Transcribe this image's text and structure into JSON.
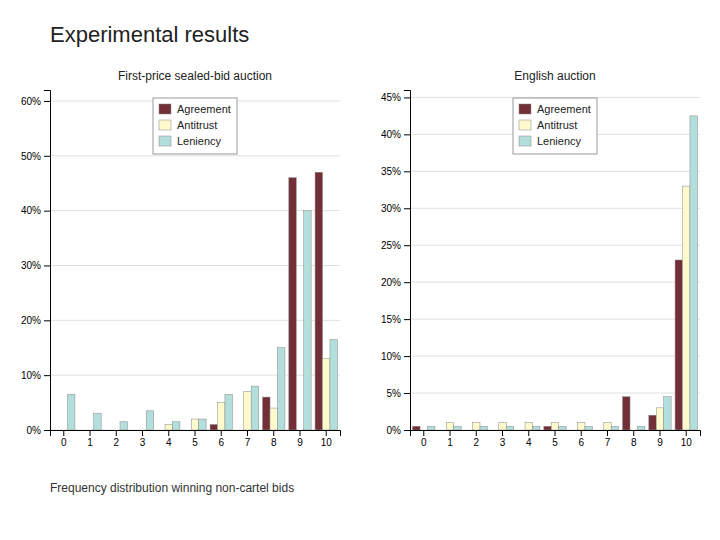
{
  "title": "Experimental results",
  "subtitle": "Frequency distribution winning non-cartel bids",
  "chart_data": [
    {
      "type": "bar",
      "title": "First-price sealed-bid auction",
      "categories": [
        0,
        1,
        2,
        3,
        4,
        5,
        6,
        7,
        8,
        9,
        10
      ],
      "series": [
        {
          "name": "Agreement",
          "color": "#722F37",
          "values": [
            0,
            0,
            0,
            0,
            0,
            0,
            0.01,
            0,
            0.06,
            0.46,
            0.47
          ]
        },
        {
          "name": "Antitrust",
          "color": "#FFFACD",
          "values": [
            0,
            0,
            0,
            0,
            0.01,
            0.02,
            0.05,
            0.07,
            0.04,
            0,
            0.13
          ]
        },
        {
          "name": "Leniency",
          "color": "#B2DFDB",
          "values": [
            0.065,
            0.03,
            0.015,
            0.035,
            0.015,
            0.02,
            0.065,
            0.08,
            0.15,
            0.4,
            0.165
          ]
        }
      ],
      "ylim": [
        0,
        0.62
      ],
      "yticks": [
        {
          "value": 0.0,
          "label": "0%"
        },
        {
          "value": 0.1,
          "label": "10%"
        },
        {
          "value": 0.2,
          "label": "20%"
        },
        {
          "value": 0.3,
          "label": "30%"
        },
        {
          "value": 0.4,
          "label": "40%"
        },
        {
          "value": 0.5,
          "label": "50%"
        },
        {
          "value": 0.6,
          "label": "60%"
        }
      ],
      "grid": true,
      "legend": "upper center"
    },
    {
      "type": "bar",
      "title": "English auction",
      "categories": [
        0,
        1,
        2,
        3,
        4,
        5,
        6,
        7,
        8,
        9,
        10
      ],
      "series": [
        {
          "name": "Agreement",
          "color": "#722F37",
          "values": [
            0.005,
            0,
            0,
            0,
            0,
            0.005,
            0,
            0,
            0.045,
            0.02,
            0.23
          ]
        },
        {
          "name": "Antitrust",
          "color": "#FFFACD",
          "values": [
            0,
            0.01,
            0.01,
            0.01,
            0.01,
            0.01,
            0.01,
            0.01,
            0,
            0.03,
            0.33
          ]
        },
        {
          "name": "Leniency",
          "color": "#B2DFDB",
          "values": [
            0.005,
            0.005,
            0.005,
            0.005,
            0.005,
            0.005,
            0.005,
            0.005,
            0.005,
            0.045,
            0.425
          ]
        }
      ],
      "ylim": [
        0,
        0.46
      ],
      "yticks": [
        {
          "value": 0.0,
          "label": "0%"
        },
        {
          "value": 0.05,
          "label": "5%"
        },
        {
          "value": 0.1,
          "label": "10%"
        },
        {
          "value": 0.15,
          "label": "15%"
        },
        {
          "value": 0.2,
          "label": "20%"
        },
        {
          "value": 0.25,
          "label": "25%"
        },
        {
          "value": 0.3,
          "label": "30%"
        },
        {
          "value": 0.35,
          "label": "35%"
        },
        {
          "value": 0.4,
          "label": "40%"
        },
        {
          "value": 0.45,
          "label": "45%"
        }
      ],
      "grid": true,
      "legend": "upper center"
    }
  ]
}
